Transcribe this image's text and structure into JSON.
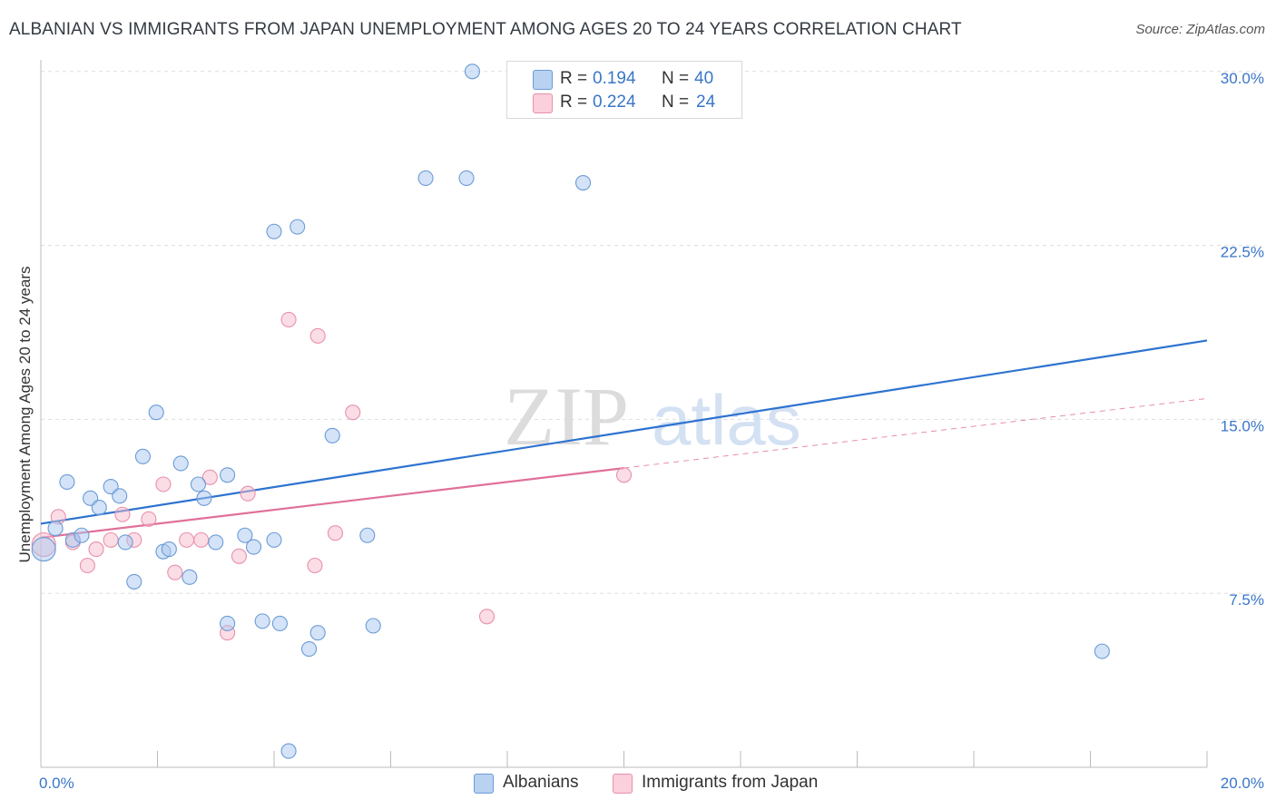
{
  "title": "ALBANIAN VS IMMIGRANTS FROM JAPAN UNEMPLOYMENT AMONG AGES 20 TO 24 YEARS CORRELATION CHART",
  "source": "Source: ZipAtlas.com",
  "watermark": {
    "zip": "ZIP",
    "atlas": "atlas"
  },
  "legend": {
    "albanians": {
      "r_label": "R =",
      "r_value": "0.194",
      "n_label": "N =",
      "n_value": "40"
    },
    "japan": {
      "r_label": "R =",
      "r_value": "0.224",
      "n_label": "N =",
      "n_value": "24"
    }
  },
  "bottom_legend": {
    "albanians": "Albanians",
    "japan": "Immigrants from Japan"
  },
  "colors": {
    "blue_fill": "#a9c8ef",
    "blue_stroke": "#6b9bd6",
    "blue_line": "#2d73d0",
    "pink_fill": "#f7bccd",
    "pink_stroke": "#e890aa",
    "pink_line": "#e0709a",
    "tick_label": "#3a76c8"
  },
  "chart_data": {
    "type": "scatter",
    "title": "ALBANIAN VS IMMIGRANTS FROM JAPAN UNEMPLOYMENT AMONG AGES 20 TO 24 YEARS CORRELATION CHART",
    "xlabel": "",
    "ylabel": "Unemployment Among Ages 20 to 24 years",
    "xlim": [
      0,
      20
    ],
    "ylim": [
      0,
      30.5
    ],
    "x_tick_labels": [
      {
        "value": 0,
        "label": "0.0%"
      },
      {
        "value": 20,
        "label": "20.0%"
      }
    ],
    "y_tick_labels": [
      {
        "value": 7.5,
        "label": "7.5%"
      },
      {
        "value": 15,
        "label": "15.0%"
      },
      {
        "value": 22.5,
        "label": "22.5%"
      },
      {
        "value": 30,
        "label": "30.0%"
      }
    ],
    "series": [
      {
        "name": "Albanians",
        "color": "#a9c8ef",
        "points": [
          [
            0.05,
            9.4
          ],
          [
            0.25,
            10.3
          ],
          [
            0.45,
            12.3
          ],
          [
            0.55,
            9.8
          ],
          [
            0.7,
            10.0
          ],
          [
            0.85,
            11.6
          ],
          [
            1.0,
            11.2
          ],
          [
            1.2,
            12.1
          ],
          [
            1.35,
            11.7
          ],
          [
            1.45,
            9.7
          ],
          [
            1.6,
            8.0
          ],
          [
            1.75,
            13.4
          ],
          [
            1.98,
            15.3
          ],
          [
            2.1,
            9.3
          ],
          [
            2.2,
            9.4
          ],
          [
            2.4,
            13.1
          ],
          [
            2.55,
            8.2
          ],
          [
            2.7,
            12.2
          ],
          [
            2.8,
            11.6
          ],
          [
            3.0,
            9.7
          ],
          [
            3.2,
            12.6
          ],
          [
            3.5,
            10.0
          ],
          [
            3.65,
            9.5
          ],
          [
            3.8,
            6.3
          ],
          [
            4.0,
            9.8
          ],
          [
            4.1,
            6.2
          ],
          [
            4.0,
            23.1
          ],
          [
            4.4,
            23.3
          ],
          [
            4.25,
            0.7
          ],
          [
            4.6,
            5.1
          ],
          [
            4.75,
            5.8
          ],
          [
            5.0,
            14.3
          ],
          [
            5.6,
            10.0
          ],
          [
            5.7,
            6.1
          ],
          [
            6.6,
            25.4
          ],
          [
            7.3,
            25.4
          ],
          [
            7.4,
            30.0
          ],
          [
            9.3,
            25.2
          ],
          [
            18.2,
            5.0
          ],
          [
            3.2,
            6.2
          ]
        ]
      },
      {
        "name": "Immigrants from Japan",
        "color": "#f7bccd",
        "points": [
          [
            0.05,
            9.6
          ],
          [
            0.3,
            10.8
          ],
          [
            0.55,
            9.7
          ],
          [
            0.8,
            8.7
          ],
          [
            0.95,
            9.4
          ],
          [
            1.2,
            9.8
          ],
          [
            1.4,
            10.9
          ],
          [
            1.6,
            9.8
          ],
          [
            1.85,
            10.7
          ],
          [
            2.1,
            12.2
          ],
          [
            2.3,
            8.4
          ],
          [
            2.5,
            9.8
          ],
          [
            2.75,
            9.8
          ],
          [
            2.9,
            12.5
          ],
          [
            3.2,
            5.8
          ],
          [
            3.4,
            9.1
          ],
          [
            3.55,
            11.8
          ],
          [
            4.25,
            19.3
          ],
          [
            4.7,
            8.7
          ],
          [
            4.75,
            18.6
          ],
          [
            5.05,
            10.1
          ],
          [
            5.35,
            15.3
          ],
          [
            7.65,
            6.5
          ],
          [
            10.0,
            12.6
          ]
        ]
      }
    ],
    "trend_lines": [
      {
        "series": "Albanians",
        "x": [
          0,
          20
        ],
        "y": [
          10.5,
          18.4
        ],
        "style": "solid"
      },
      {
        "series": "Immigrants from Japan",
        "x": [
          0,
          10
        ],
        "y": [
          9.9,
          12.9
        ],
        "style": "solid"
      },
      {
        "series": "Immigrants from Japan",
        "x": [
          10,
          20
        ],
        "y": [
          12.9,
          15.9
        ],
        "style": "dashed"
      }
    ]
  }
}
